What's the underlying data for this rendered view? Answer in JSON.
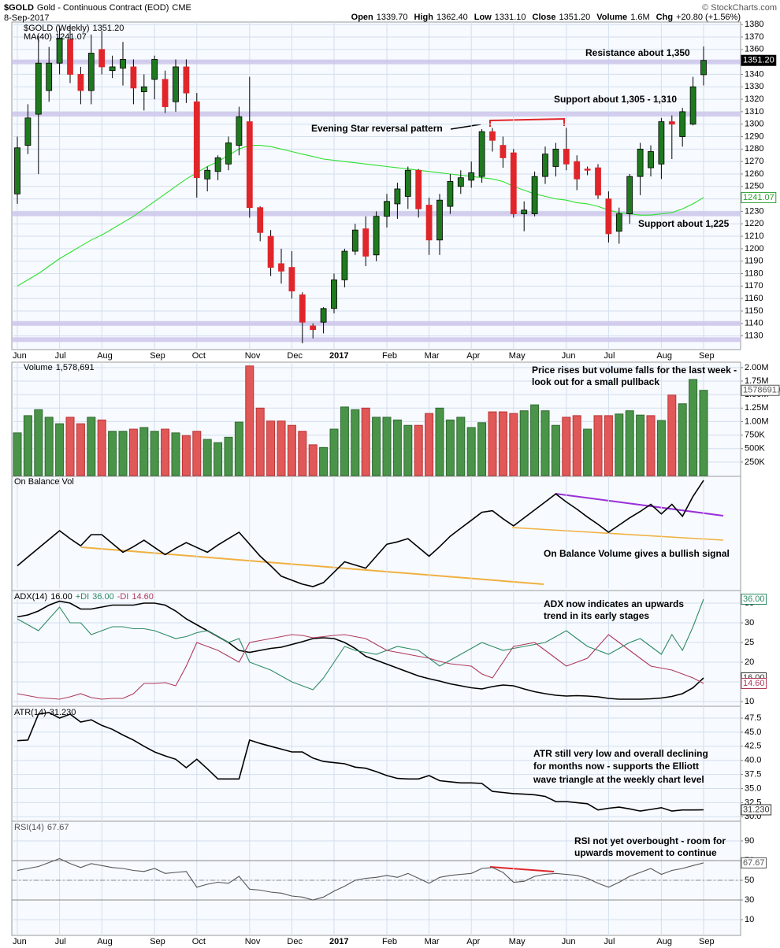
{
  "header": {
    "symbol": "$GOLD",
    "description": "Gold - Continuous Contract (EOD)",
    "exchange": "CME",
    "date": "8-Sep-2017",
    "source": "© StockCharts.com",
    "quote": [
      {
        "label": "Open",
        "value": "1339.70"
      },
      {
        "label": "High",
        "value": "1362.40"
      },
      {
        "label": "Low",
        "value": "1331.10"
      },
      {
        "label": "Close",
        "value": "1351.20"
      },
      {
        "label": "Volume",
        "value": "1.6M"
      },
      {
        "label": "Chg",
        "value": "+20.80 (+1.56%)"
      }
    ]
  },
  "chart_data": [
    {
      "type": "candlestick",
      "title": "$GOLD (Weekly)",
      "close_label": "1351.20",
      "categories": [
        "Jun",
        null,
        null,
        null,
        "Jul",
        null,
        null,
        null,
        "Aug",
        null,
        null,
        null,
        null,
        "Sep",
        null,
        null,
        null,
        "Oct",
        null,
        null,
        null,
        null,
        "Nov",
        null,
        null,
        null,
        "Dec",
        null,
        null,
        null,
        "2017",
        null,
        null,
        null,
        null,
        "Feb",
        null,
        null,
        null,
        "Mar",
        null,
        null,
        null,
        "Apr",
        null,
        null,
        null,
        "May",
        null,
        null,
        null,
        null,
        "Jun",
        null,
        null,
        null,
        "Jul",
        null,
        null,
        null,
        null,
        "Aug",
        null,
        null,
        null,
        "Sep"
      ],
      "open": [
        1244,
        1283,
        1308,
        1327,
        1349,
        1368,
        1340,
        1327,
        1360,
        1343,
        1345,
        1346,
        1326,
        1336,
        1336,
        1318,
        1346,
        1318,
        1256,
        1262,
        1268,
        1283,
        1302,
        1233,
        1210,
        1188,
        1185,
        1163,
        1138,
        1141,
        1152,
        1175,
        1198,
        1216,
        1195,
        1226,
        1236,
        1242,
        1263,
        1235,
        1207,
        1234,
        1250,
        1255,
        1258,
        1294,
        1283,
        1277,
        1228,
        1228,
        1258,
        1266,
        1280,
        1270,
        1264,
        1265,
        1240,
        1214,
        1228,
        1258,
        1265,
        1268,
        1302,
        1290,
        1300,
        1339.7
      ],
      "high": [
        1290,
        1316,
        1371,
        1362,
        1377,
        1380,
        1346,
        1372,
        1375,
        1355,
        1366,
        1352,
        1340,
        1355,
        1343,
        1352,
        1352,
        1325,
        1266,
        1275,
        1290,
        1314,
        1338,
        1234,
        1215,
        1200,
        1198,
        1165,
        1140,
        1153,
        1180,
        1200,
        1220,
        1226,
        1230,
        1244,
        1253,
        1266,
        1264,
        1241,
        1244,
        1260,
        1263,
        1270,
        1296,
        1297,
        1290,
        1280,
        1238,
        1262,
        1282,
        1285,
        1297,
        1275,
        1266,
        1268,
        1246,
        1233,
        1260,
        1285,
        1283,
        1305,
        1307,
        1313,
        1338,
        1362.4
      ],
      "low": [
        1236,
        1276,
        1260,
        1318,
        1340,
        1333,
        1316,
        1316,
        1340,
        1337,
        1331,
        1316,
        1311,
        1320,
        1309,
        1310,
        1317,
        1241,
        1246,
        1255,
        1263,
        1275,
        1225,
        1206,
        1178,
        1172,
        1160,
        1124,
        1128,
        1132,
        1148,
        1169,
        1195,
        1186,
        1190,
        1217,
        1224,
        1232,
        1225,
        1195,
        1195,
        1228,
        1244,
        1249,
        1253,
        1278,
        1265,
        1225,
        1214,
        1226,
        1252,
        1258,
        1263,
        1247,
        1259,
        1240,
        1205,
        1204,
        1220,
        1243,
        1258,
        1256,
        1272,
        1282,
        1299,
        1331.1
      ],
      "close": [
        1281,
        1305,
        1349,
        1349,
        1369,
        1340,
        1327,
        1357,
        1346,
        1346,
        1352,
        1329,
        1330,
        1352,
        1314,
        1346,
        1325,
        1257,
        1263,
        1273,
        1285,
        1306,
        1233,
        1213,
        1185,
        1182,
        1166,
        1141,
        1135,
        1152,
        1175,
        1198,
        1215,
        1194,
        1226,
        1238,
        1248,
        1263,
        1232,
        1207,
        1239,
        1254,
        1257,
        1261,
        1294,
        1287,
        1273,
        1228,
        1231,
        1258,
        1276,
        1280,
        1268,
        1256,
        1263,
        1243,
        1212,
        1228,
        1258,
        1280,
        1278,
        1302,
        1300,
        1310,
        1330,
        1351.2
      ],
      "up_color": "#1f7a1f",
      "down_color": "#e0262b",
      "series": [
        {
          "name": "MA(40)",
          "value_label": "1241.07",
          "color": "#2ee02e",
          "values": [
            1170,
            1175,
            1180,
            1186,
            1192,
            1197,
            1202,
            1207,
            1211,
            1216,
            1221,
            1226,
            1232,
            1238,
            1244,
            1250,
            1256,
            1261,
            1266,
            1270,
            1275,
            1280,
            1283,
            1283,
            1282,
            1280,
            1278,
            1276,
            1274,
            1272,
            1271,
            1270,
            1269,
            1268,
            1267,
            1266,
            1265,
            1264,
            1263,
            1262,
            1261,
            1260,
            1259,
            1258,
            1257,
            1256,
            1254,
            1250,
            1247,
            1244,
            1242,
            1240,
            1239,
            1237,
            1236,
            1234,
            1231,
            1229,
            1228,
            1227,
            1227,
            1228,
            1229,
            1232,
            1236,
            1241.07
          ]
        }
      ],
      "levels": [
        1350,
        1308,
        1228,
        1140,
        1127
      ],
      "level_color": "#cdc6ea",
      "annotations": [
        "Resistance about 1,350",
        "Support about 1,305 - 1,310",
        "Evening Star reversal pattern",
        "Support about 1,225"
      ],
      "ylim": [
        1119,
        1382
      ],
      "yticks": [
        1130,
        1140,
        1150,
        1160,
        1170,
        1180,
        1190,
        1200,
        1210,
        1220,
        1230,
        1240,
        1250,
        1260,
        1270,
        1280,
        1290,
        1300,
        1310,
        1320,
        1330,
        1340,
        1350,
        1360,
        1370,
        1380
      ],
      "grid": true
    },
    {
      "type": "bar",
      "title": "Volume",
      "title_value": "1,578,691",
      "value_label": "1578691.0",
      "up_color": "#4a944a",
      "down_color": "#e05858",
      "values": [
        790000,
        1110000,
        1220000,
        1080000,
        960000,
        1080000,
        960000,
        1080000,
        1030000,
        820000,
        820000,
        860000,
        890000,
        820000,
        860000,
        790000,
        740000,
        820000,
        670000,
        610000,
        710000,
        990000,
        2030000,
        1250000,
        1010000,
        1010000,
        930000,
        820000,
        570000,
        520000,
        860000,
        1270000,
        1220000,
        1250000,
        1080000,
        1080000,
        1030000,
        930000,
        930000,
        1150000,
        1250000,
        1030000,
        1080000,
        890000,
        980000,
        1180000,
        1180000,
        1150000,
        1200000,
        1310000,
        1200000,
        930000,
        1080000,
        1110000,
        860000,
        1110000,
        1110000,
        1140000,
        1200000,
        1120000,
        1110000,
        1020000,
        1490000,
        1330000,
        1780000,
        1578691
      ],
      "annotations": [
        "Price rises but volume falls for the last week -",
        "look out for a small pullback"
      ],
      "ylim": [
        0,
        2100000
      ],
      "yticks": [
        {
          "value": 250000,
          "label": "250K"
        },
        {
          "value": 500000,
          "label": "500K"
        },
        {
          "value": 750000,
          "label": "750K"
        },
        {
          "value": 1000000,
          "label": "1.00M"
        },
        {
          "value": 1250000,
          "label": "1.25M"
        },
        {
          "value": 1500000,
          "label": "1.50M"
        },
        {
          "value": 1750000,
          "label": "1.75M"
        },
        {
          "value": 2000000,
          "label": "2.00M"
        }
      ],
      "grid": true
    },
    {
      "type": "line",
      "title": "On Balance Vol",
      "series": [
        {
          "color": "#000000",
          "values": [
            28,
            39,
            50,
            61,
            72,
            62,
            53,
            67,
            67,
            56,
            45,
            52,
            60,
            51,
            42,
            50,
            57,
            51,
            45,
            54,
            62,
            70,
            55,
            40,
            28,
            15,
            10,
            5,
            2,
            7,
            20,
            33,
            29,
            25,
            40,
            55,
            58,
            62,
            51,
            40,
            52,
            65,
            75,
            85,
            95,
            97,
            87,
            78,
            88,
            98,
            108,
            118,
            108,
            99,
            89,
            80,
            70,
            79,
            88,
            96,
            105,
            93,
            105,
            90,
            115,
            135
          ]
        }
      ],
      "annotations": [
        "On Balance Volume gives a bullish signal"
      ],
      "ylim": [
        0,
        140
      ],
      "grid": true
    },
    {
      "type": "line",
      "series": [
        {
          "name": "ADX(14)",
          "value_label": "16.00",
          "color": "#000000",
          "values": [
            31.5,
            32,
            33,
            34.5,
            35.5,
            35,
            33.5,
            33.5,
            34,
            34.5,
            34.5,
            34.5,
            35,
            35,
            34.5,
            33,
            31,
            29.5,
            28,
            26.5,
            25,
            23,
            22.5,
            23,
            23.5,
            23.8,
            24.5,
            25.2,
            26,
            26.2,
            26,
            25,
            23.5,
            21.5,
            20.5,
            19.5,
            18.5,
            17.5,
            16.5,
            15.8,
            15.2,
            14.5,
            14,
            13.5,
            13.2,
            13.8,
            14.2,
            14,
            13.2,
            12.5,
            12,
            11.6,
            11.4,
            11.5,
            11.4,
            11.2,
            10.8,
            10.6,
            10.6,
            10.6,
            10.7,
            10.9,
            11.3,
            12,
            13.5,
            16
          ]
        },
        {
          "name": "+DI",
          "value_label": "36.00",
          "color": "#2e8b63",
          "values": [
            31,
            29.5,
            28,
            31,
            34,
            30,
            30,
            27,
            28,
            29,
            29,
            28.5,
            28.5,
            28,
            27,
            26,
            26.5,
            27.5,
            28,
            26.5,
            25,
            26,
            20,
            19,
            18,
            16.5,
            15,
            14,
            13,
            16,
            20,
            24,
            23,
            22.5,
            22,
            23,
            24,
            23.5,
            23,
            21,
            19,
            20.5,
            22,
            23.5,
            25,
            24,
            23,
            23.5,
            24,
            24.5,
            25,
            26.5,
            28,
            26,
            24,
            23,
            22,
            23.5,
            25,
            26,
            24,
            22,
            27,
            23,
            29,
            36
          ]
        },
        {
          "name": "-DI",
          "value_label": "14.60",
          "color": "#b03a5b",
          "values": [
            12,
            11.5,
            11,
            10.8,
            10.6,
            11.2,
            12,
            11,
            10.6,
            10.8,
            10.8,
            12,
            14.6,
            14.6,
            14.8,
            14,
            19,
            25,
            24,
            23,
            21.5,
            20,
            25,
            25.5,
            26,
            26.5,
            27,
            26.8,
            26.2,
            26.5,
            26.8,
            27,
            26.5,
            26,
            24.5,
            23,
            22.5,
            22,
            21.5,
            21,
            20.2,
            19.6,
            19.3,
            19,
            17,
            16,
            20,
            24,
            24.5,
            25,
            23,
            21,
            19,
            20,
            21,
            24,
            27,
            25,
            23,
            21,
            19,
            18.5,
            18,
            17,
            16,
            14.6
          ]
        }
      ],
      "annotations": [
        "ADX now indicates an upwards",
        "trend in its early stages"
      ],
      "ylim": [
        8.8,
        38.2
      ],
      "yticks": [
        10,
        15,
        20,
        25,
        30,
        35
      ],
      "grid": true
    },
    {
      "type": "line",
      "series": [
        {
          "name": "ATR(14)",
          "value_label": "31.230",
          "color": "#000000",
          "values": [
            43.5,
            43.6,
            48.2,
            48.5,
            47.5,
            48.2,
            46.8,
            47.2,
            46.2,
            45.5,
            44.5,
            43.6,
            42.5,
            41.5,
            40.8,
            40.2,
            38.7,
            40.2,
            38.5,
            36.7,
            36.7,
            36.7,
            43.6,
            43,
            42.5,
            42,
            41.5,
            41.5,
            40.4,
            39.8,
            39.6,
            39.4,
            38.8,
            38.6,
            38,
            37.3,
            36.8,
            36.7,
            36.7,
            37.3,
            36.4,
            36.2,
            36,
            36,
            35.9,
            34.5,
            34.3,
            34.1,
            34,
            33.9,
            33.6,
            32.7,
            32.7,
            32.5,
            32.3,
            31.2,
            31.5,
            31.7,
            31.4,
            31,
            31.3,
            31.6,
            31,
            31.2,
            31.2,
            31.23
          ]
        }
      ],
      "annotations": [
        "ATR still very low and overall declining",
        "for months now - supports the Elliott",
        "wave triangle at the weekly chart level"
      ],
      "ylim": [
        29.2,
        49.6
      ],
      "yticks": [
        {
          "value": 30,
          "label": "30.0"
        },
        32.5,
        {
          "value": 35,
          "label": "35.0"
        },
        37.5,
        {
          "value": 40,
          "label": "40.0"
        },
        42.5,
        {
          "value": 45,
          "label": "45.0"
        },
        47.5
      ],
      "grid": true
    },
    {
      "type": "line",
      "categories": [
        "Jun",
        null,
        null,
        null,
        "Jul",
        null,
        null,
        null,
        "Aug",
        null,
        null,
        null,
        null,
        "Sep",
        null,
        null,
        null,
        "Oct",
        null,
        null,
        null,
        null,
        "Nov",
        null,
        null,
        null,
        "Dec",
        null,
        null,
        null,
        "2017",
        null,
        null,
        null,
        null,
        "Feb",
        null,
        null,
        null,
        "Mar",
        null,
        null,
        null,
        "Apr",
        null,
        null,
        null,
        "May",
        null,
        null,
        null,
        null,
        "Jun",
        null,
        null,
        null,
        "Jul",
        null,
        null,
        null,
        null,
        "Aug",
        null,
        null,
        null,
        "Sep"
      ],
      "series": [
        {
          "name": "RSI(14)",
          "value_label": "67.67",
          "color": "#555555",
          "values": [
            60,
            62,
            64,
            68,
            72,
            67,
            63,
            67,
            65,
            63,
            62,
            60,
            59,
            62,
            57,
            58,
            59,
            43,
            46,
            48,
            47,
            54,
            41,
            40,
            38,
            37,
            34,
            33,
            30,
            33,
            39,
            44,
            50,
            52,
            53,
            55,
            53,
            57,
            52,
            47,
            53,
            55,
            56,
            57,
            62,
            63,
            58,
            48,
            49,
            54,
            56,
            57,
            56,
            55,
            52,
            47,
            43,
            48,
            54,
            58,
            62,
            56,
            60,
            62,
            65,
            67.67
          ]
        }
      ],
      "ref_lines": [
        30,
        70
      ],
      "midline": 50,
      "annotations": [
        "RSI not yet overbought - room for",
        "upwards movement to continue"
      ],
      "ylim": [
        -6,
        110
      ],
      "yticks": [
        10,
        30,
        50,
        70,
        90
      ],
      "grid": true
    }
  ]
}
